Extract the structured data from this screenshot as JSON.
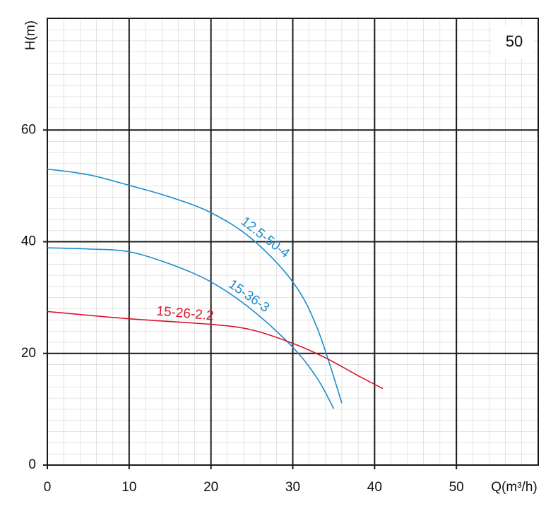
{
  "chart_data": {
    "type": "line",
    "x_label": "Q(m³/h)",
    "y_label": "H(m)",
    "panel_label": "50",
    "xlim": [
      0,
      60
    ],
    "ylim": [
      0,
      80
    ],
    "xticks": [
      0,
      10,
      20,
      30,
      40,
      50
    ],
    "yticks": [
      0,
      20,
      40,
      60
    ],
    "grid": true,
    "series": [
      {
        "name": "12.5-50-4",
        "color": "#1c8dcc",
        "x": [
          0,
          5,
          10,
          15,
          20,
          25,
          30,
          33,
          36
        ],
        "values": [
          53,
          52,
          50.1,
          48,
          45.2,
          40.5,
          32.8,
          24.5,
          11.1
        ]
      },
      {
        "name": "15-36-3",
        "color": "#1c8dcc",
        "x": [
          0,
          5,
          10,
          15,
          20,
          25,
          30,
          33,
          35
        ],
        "values": [
          38.9,
          38.7,
          38.2,
          36,
          32.8,
          27.8,
          21.1,
          15.5,
          10.1
        ]
      },
      {
        "name": "15-26-2.2",
        "color": "#d9142b",
        "x": [
          0,
          10,
          20,
          25,
          30,
          34,
          38,
          41
        ],
        "values": [
          27.5,
          26.2,
          25.2,
          24.2,
          21.8,
          19.2,
          16,
          13.7
        ]
      }
    ]
  }
}
